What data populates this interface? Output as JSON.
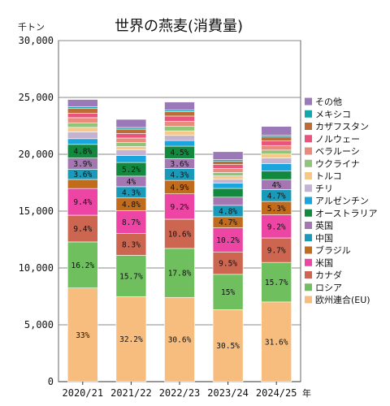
{
  "chart_data": {
    "type": "bar",
    "stacked": true,
    "title": "世界の燕麦(消費量)",
    "y_unit_label": "千トン",
    "x_unit_label": "年",
    "ylim": [
      0,
      30000
    ],
    "y_ticks": [
      0,
      5000,
      10000,
      15000,
      20000,
      25000,
      30000
    ],
    "y_tick_labels": [
      "0",
      "5,000",
      "10,000",
      "15,000",
      "20,000",
      "25,000",
      "30,000"
    ],
    "grid": true,
    "legend_position": "right",
    "categories": [
      "2020/21",
      "2021/22",
      "2022/23",
      "2023/24",
      "2024/25"
    ],
    "series": [
      {
        "name": "欧州連合(EU)",
        "color": "#f6bd7f",
        "values": [
          8240,
          7470,
          7410,
          6330,
          7010
        ],
        "labels": [
          "33%",
          "32.2%",
          "30.6%",
          "30.5%",
          "31.6%"
        ]
      },
      {
        "name": "ロシア",
        "color": "#6fbf5f",
        "values": [
          4050,
          3640,
          4310,
          3110,
          3480
        ],
        "labels": [
          "16.2%",
          "15.7%",
          "17.8%",
          "15%",
          "15.7%"
        ]
      },
      {
        "name": "カナダ",
        "color": "#cd6650",
        "values": [
          2350,
          1920,
          2570,
          1970,
          2150
        ],
        "labels": [
          "9.4%",
          "8.3%",
          "10.6%",
          "9.5%",
          "9.7%"
        ]
      },
      {
        "name": "米国",
        "color": "#ec45a4",
        "values": [
          2350,
          2020,
          2230,
          2120,
          2040
        ],
        "labels": [
          "9.4%",
          "8.7%",
          "9.2%",
          "10.2%",
          "9.2%"
        ]
      },
      {
        "name": "ブラジル",
        "color": "#c16b1d",
        "values": [
          800,
          1110,
          1190,
          980,
          1170
        ],
        "labels": [
          "",
          "4.8%",
          "4.9%",
          "4.7%",
          "5.3%"
        ]
      },
      {
        "name": "中国",
        "color": "#1b99b8",
        "values": [
          900,
          990,
          1040,
          1000,
          1040
        ],
        "labels": [
          "3.6%",
          "4.3%",
          "4.3%",
          "4.8%",
          "4.7%"
        ]
      },
      {
        "name": "英国",
        "color": "#a476b2",
        "values": [
          980,
          930,
          870,
          720,
          890
        ],
        "labels": [
          "3.9%",
          "4%",
          "3.6%",
          "",
          "4%"
        ]
      },
      {
        "name": "オーストラリア",
        "color": "#13893f",
        "values": [
          1200,
          1200,
          1090,
          770,
          740
        ],
        "labels": [
          "4.8%",
          "5.2%",
          "4.5%",
          "",
          ""
        ]
      },
      {
        "name": "アルゼンチン",
        "color": "#1aa6dd",
        "values": [
          500,
          600,
          500,
          450,
          650
        ],
        "labels": [
          "",
          "",
          "",
          "",
          ""
        ]
      },
      {
        "name": "チリ",
        "color": "#c3b2d1",
        "values": [
          600,
          500,
          450,
          350,
          500
        ],
        "labels": [
          "",
          "",
          "",
          "",
          ""
        ]
      },
      {
        "name": "トルコ",
        "color": "#f8c889",
        "values": [
          400,
          300,
          400,
          300,
          350
        ],
        "labels": [
          "",
          "",
          "",
          "",
          ""
        ]
      },
      {
        "name": "ウクライナ",
        "color": "#8fc479",
        "values": [
          400,
          350,
          400,
          300,
          350
        ],
        "labels": [
          "",
          "",
          "",
          "",
          ""
        ]
      },
      {
        "name": "ベラルーシ",
        "color": "#e88a7c",
        "values": [
          450,
          400,
          450,
          350,
          400
        ],
        "labels": [
          "",
          "",
          "",
          "",
          ""
        ]
      },
      {
        "name": "ノルウェー",
        "color": "#e9547c",
        "values": [
          400,
          400,
          450,
          350,
          400
        ],
        "labels": [
          "",
          "",
          "",
          "",
          ""
        ]
      },
      {
        "name": "カザフスタン",
        "color": "#be6c35",
        "values": [
          400,
          380,
          400,
          280,
          350
        ],
        "labels": [
          "",
          "",
          "",
          "",
          ""
        ]
      },
      {
        "name": "メキシコ",
        "color": "#12a7ad",
        "values": [
          150,
          150,
          150,
          150,
          150
        ],
        "labels": [
          "",
          "",
          "",
          "",
          ""
        ]
      },
      {
        "name": "その他",
        "color": "#9b79b8",
        "values": [
          650,
          710,
          690,
          700,
          780
        ],
        "labels": [
          "",
          "",
          "",
          "",
          ""
        ]
      }
    ]
  }
}
